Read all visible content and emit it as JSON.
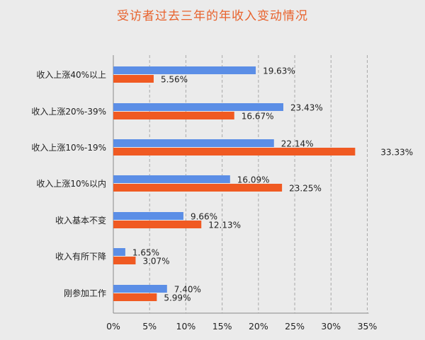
{
  "chart_data": {
    "type": "bar",
    "orientation": "horizontal",
    "title": "受访者过去三年的年收入变动情况",
    "categories": [
      "收入上涨40%以上",
      "收入上涨20%-39%",
      "收入上涨10%-19%",
      "收入上涨10%以内",
      "收入基本不变",
      "收入有所下降",
      "刚参加工作"
    ],
    "series": [
      {
        "color": "#5b8ee6",
        "values": [
          19.63,
          23.43,
          22.14,
          16.09,
          9.66,
          1.65,
          7.4
        ],
        "labels": [
          "19.63%",
          "23.43%",
          "22.14%",
          "16.09%",
          "9.66%",
          "1.65%",
          "7.40%"
        ]
      },
      {
        "color": "#f05a22",
        "values": [
          5.56,
          16.67,
          33.33,
          23.25,
          12.13,
          3.07,
          5.99
        ],
        "labels": [
          "5.56%",
          "16.67%",
          "33.33%",
          "23.25%",
          "12.13%",
          "3.07%",
          "5.99%"
        ]
      }
    ],
    "xlim": [
      0,
      35
    ],
    "xticks": [
      "0%",
      "5%",
      "10%",
      "15%",
      "20%",
      "25%",
      "30%",
      "35%"
    ],
    "grid": "vertical-dashed",
    "legend": "none"
  }
}
